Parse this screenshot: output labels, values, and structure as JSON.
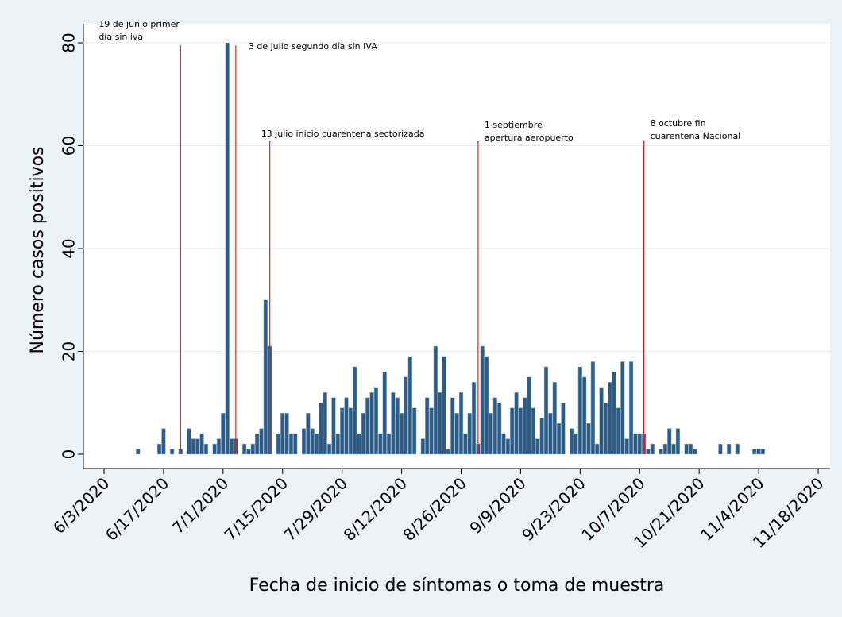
{
  "chart_data": {
    "type": "bar",
    "x_label": "Fecha de inicio de síntomas o toma de muestra",
    "y_label": "Número casos positivos",
    "xlim": [
      "6/3/2020",
      "11/18/2020"
    ],
    "xticks": [
      "6/3/2020",
      "6/17/2020",
      "7/1/2020",
      "7/15/2020",
      "7/29/2020",
      "8/12/2020",
      "8/26/2020",
      "9/9/2020",
      "9/23/2020",
      "10/7/2020",
      "10/21/2020",
      "11/4/2020",
      "11/18/2020"
    ],
    "ylim": [
      0,
      80
    ],
    "yticks": [
      0,
      20,
      40,
      60,
      80
    ],
    "grid": true,
    "color": "#2c5b84",
    "x": [
      "6/11/2020",
      "6/16/2020",
      "6/17/2020",
      "6/19/2020",
      "6/21/2020",
      "6/23/2020",
      "6/24/2020",
      "6/25/2020",
      "6/26/2020",
      "6/27/2020",
      "6/29/2020",
      "6/30/2020",
      "7/1/2020",
      "7/2/2020",
      "7/3/2020",
      "7/4/2020",
      "7/6/2020",
      "7/7/2020",
      "7/8/2020",
      "7/9/2020",
      "7/10/2020",
      "7/11/2020",
      "7/12/2020",
      "7/14/2020",
      "7/15/2020",
      "7/16/2020",
      "7/17/2020",
      "7/18/2020",
      "7/20/2020",
      "7/21/2020",
      "7/22/2020",
      "7/23/2020",
      "7/24/2020",
      "7/25/2020",
      "7/26/2020",
      "7/27/2020",
      "7/28/2020",
      "7/29/2020",
      "7/30/2020",
      "7/31/2020",
      "8/1/2020",
      "8/2/2020",
      "8/3/2020",
      "8/4/2020",
      "8/5/2020",
      "8/6/2020",
      "8/7/2020",
      "8/8/2020",
      "8/9/2020",
      "8/10/2020",
      "8/11/2020",
      "8/12/2020",
      "8/13/2020",
      "8/14/2020",
      "8/15/2020",
      "8/17/2020",
      "8/18/2020",
      "8/19/2020",
      "8/20/2020",
      "8/21/2020",
      "8/22/2020",
      "8/23/2020",
      "8/24/2020",
      "8/25/2020",
      "8/26/2020",
      "8/27/2020",
      "8/28/2020",
      "8/29/2020",
      "8/30/2020",
      "8/31/2020",
      "9/1/2020",
      "9/2/2020",
      "9/3/2020",
      "9/4/2020",
      "9/5/2020",
      "9/6/2020",
      "9/7/2020",
      "9/8/2020",
      "9/9/2020",
      "9/10/2020",
      "9/11/2020",
      "9/12/2020",
      "9/13/2020",
      "9/14/2020",
      "9/15/2020",
      "9/16/2020",
      "9/17/2020",
      "9/18/2020",
      "9/19/2020",
      "9/21/2020",
      "9/22/2020",
      "9/23/2020",
      "9/24/2020",
      "9/25/2020",
      "9/26/2020",
      "9/27/2020",
      "9/28/2020",
      "9/29/2020",
      "9/30/2020",
      "10/1/2020",
      "10/2/2020",
      "10/3/2020",
      "10/4/2020",
      "10/5/2020",
      "10/6/2020",
      "10/7/2020",
      "10/8/2020",
      "10/9/2020",
      "10/10/2020",
      "10/12/2020",
      "10/13/2020",
      "10/14/2020",
      "10/15/2020",
      "10/16/2020",
      "10/18/2020",
      "10/19/2020",
      "10/20/2020",
      "10/26/2020",
      "10/28/2020",
      "10/30/2020",
      "11/3/2020",
      "11/4/2020",
      "11/5/2020"
    ],
    "values": [
      1,
      2,
      5,
      1,
      1,
      5,
      3,
      3,
      4,
      2,
      2,
      3,
      8,
      80,
      3,
      3,
      2,
      1,
      2,
      4,
      5,
      30,
      21,
      4,
      8,
      8,
      4,
      4,
      5,
      8,
      5,
      4,
      10,
      12,
      2,
      11,
      4,
      9,
      11,
      9,
      17,
      4,
      8,
      11,
      12,
      13,
      4,
      16,
      4,
      12,
      11,
      8,
      15,
      19,
      9,
      3,
      11,
      9,
      21,
      12,
      19,
      1,
      11,
      8,
      12,
      4,
      8,
      14,
      2,
      21,
      19,
      8,
      11,
      10,
      4,
      3,
      9,
      12,
      9,
      11,
      15,
      9,
      3,
      7,
      17,
      8,
      14,
      6,
      10,
      5,
      4,
      17,
      15,
      6,
      18,
      2,
      13,
      10,
      14,
      16,
      9,
      18,
      3,
      18,
      4,
      4,
      4,
      1,
      2,
      1,
      2,
      5,
      2,
      5,
      2,
      2,
      1,
      2,
      2,
      2,
      1,
      1,
      1
    ],
    "annotations": [
      {
        "x": "6/21/2020",
        "y": 79.5,
        "lines": [
          "19 de junio primer",
          "día sin iva"
        ],
        "color": "#e02020"
      },
      {
        "x": "7/4/2020",
        "y": 79.5,
        "lines": [
          "3 de julio segundo día sin IVA"
        ],
        "color": "#e02020"
      },
      {
        "x": "7/12/2020",
        "y": 61,
        "lines": [
          "13 julio inicio cuarentena sectorizada"
        ],
        "color": "#e02020"
      },
      {
        "x": "8/30/2020",
        "y": 61,
        "lines": [
          "1 septiembre",
          "apertura aeropuerto"
        ],
        "color": "#e02020"
      },
      {
        "x": "10/8/2020",
        "y": 61,
        "lines": [
          "8 octubre fin",
          "cuarentena Nacional"
        ],
        "color": "#e02020"
      }
    ]
  }
}
